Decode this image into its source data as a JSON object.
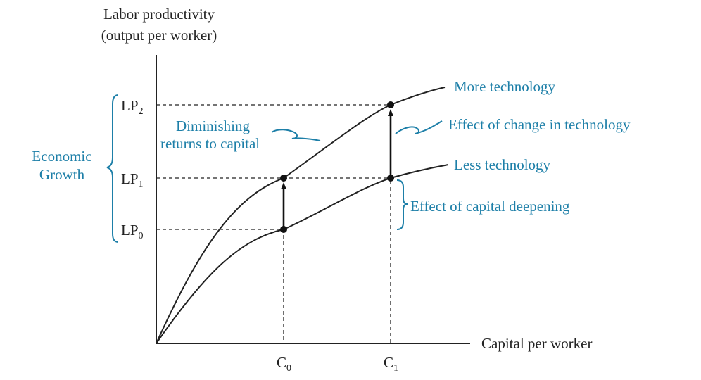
{
  "axes": {
    "y_label_line1": "Labor productivity",
    "y_label_line2": "(output per worker)",
    "x_label": "Capital per worker"
  },
  "y_ticks": [
    {
      "base": "LP",
      "sub": "2"
    },
    {
      "base": "LP",
      "sub": "1"
    },
    {
      "base": "LP",
      "sub": "0"
    }
  ],
  "x_ticks": [
    {
      "base": "C",
      "sub": "0"
    },
    {
      "base": "C",
      "sub": "1"
    }
  ],
  "curves": {
    "upper_label": "More technology",
    "lower_label": "Less technology"
  },
  "annotations": {
    "diminishing_line1": "Diminishing",
    "diminishing_line2": "returns to capital",
    "tech_change": "Effect of change in technology",
    "capital_deepening": "Effect of capital deepening",
    "growth_line1": "Economic",
    "growth_line2": "Growth"
  },
  "colors": {
    "annotation": "#1d7fa8",
    "ink": "#222222"
  }
}
